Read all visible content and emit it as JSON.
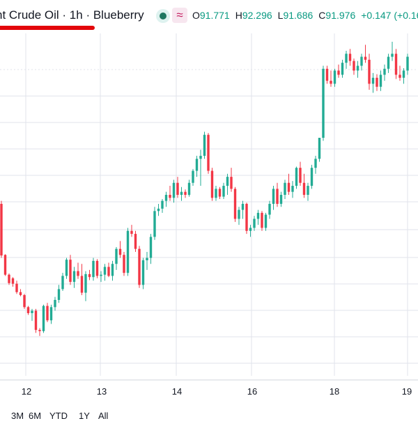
{
  "header": {
    "title": "nt Crude Oil · 1h · Blueberry",
    "indicator_glyph": "≈",
    "ohlc": {
      "o_label": "O",
      "o_value": "91.771",
      "h_label": "H",
      "h_value": "92.296",
      "l_label": "L",
      "l_value": "91.686",
      "c_label": "C",
      "c_value": "91.976",
      "change": "+0.147 (+0.16%"
    }
  },
  "colors": {
    "up": "#22ab94",
    "down": "#f23645",
    "grid": "#e0e3eb",
    "underline": "#e3070b"
  },
  "range_bar": [
    "3M",
    "6M",
    "YTD",
    "1Y",
    "All"
  ],
  "chart_data": {
    "type": "candlestick",
    "x_ticks": [
      "12",
      "13",
      "14",
      "16",
      "18",
      "19"
    ],
    "price_axis_visible": false,
    "y_range_index": [
      0,
      500
    ],
    "candles": [
      [
        390,
        395,
        300,
        304
      ],
      [
        305,
        306,
        270,
        272
      ],
      [
        272,
        274,
        255,
        258
      ],
      [
        266,
        268,
        252,
        257
      ],
      [
        257,
        262,
        240,
        243
      ],
      [
        243,
        248,
        236,
        238
      ],
      [
        238,
        240,
        215,
        218
      ],
      [
        218,
        220,
        205,
        208
      ],
      [
        208,
        215,
        195,
        212
      ],
      [
        212,
        215,
        175,
        180
      ],
      [
        180,
        183,
        170,
        178
      ],
      [
        178,
        222,
        175,
        220
      ],
      [
        220,
        225,
        193,
        196
      ],
      [
        196,
        222,
        190,
        218
      ],
      [
        218,
        235,
        212,
        230
      ],
      [
        230,
        255,
        225,
        248
      ],
      [
        248,
        275,
        245,
        270
      ],
      [
        270,
        300,
        265,
        297
      ],
      [
        297,
        305,
        255,
        260
      ],
      [
        260,
        285,
        250,
        278
      ],
      [
        278,
        292,
        265,
        270
      ],
      [
        270,
        290,
        238,
        242
      ],
      [
        242,
        278,
        228,
        273
      ],
      [
        273,
        280,
        263,
        268
      ],
      [
        268,
        300,
        262,
        295
      ],
      [
        295,
        298,
        266,
        270
      ],
      [
        270,
        278,
        260,
        272
      ],
      [
        272,
        290,
        262,
        285
      ],
      [
        285,
        292,
        268,
        270
      ],
      [
        270,
        295,
        262,
        290
      ],
      [
        290,
        318,
        280,
        315
      ],
      [
        315,
        328,
        300,
        305
      ],
      [
        305,
        310,
        270,
        275
      ],
      [
        275,
        350,
        270,
        345
      ],
      [
        345,
        355,
        335,
        340
      ],
      [
        340,
        345,
        310,
        315
      ],
      [
        315,
        320,
        250,
        255
      ],
      [
        255,
        300,
        248,
        296
      ],
      [
        296,
        310,
        280,
        300
      ],
      [
        300,
        340,
        290,
        335
      ],
      [
        335,
        385,
        330,
        378
      ],
      [
        378,
        390,
        370,
        382
      ],
      [
        382,
        398,
        375,
        395
      ],
      [
        395,
        410,
        385,
        405
      ],
      [
        405,
        420,
        395,
        400
      ],
      [
        400,
        430,
        392,
        425
      ],
      [
        425,
        435,
        400,
        405
      ],
      [
        405,
        418,
        395,
        410
      ],
      [
        410,
        414,
        400,
        405
      ],
      [
        405,
        430,
        402,
        425
      ],
      [
        425,
        448,
        420,
        445
      ],
      [
        445,
        470,
        435,
        465
      ],
      [
        465,
        480,
        420,
        470
      ],
      [
        470,
        510,
        465,
        505
      ],
      [
        505,
        508,
        440,
        445
      ],
      [
        445,
        450,
        395,
        400
      ],
      [
        400,
        420,
        395,
        415
      ],
      [
        415,
        418,
        398,
        402
      ],
      [
        402,
        425,
        398,
        420
      ],
      [
        420,
        440,
        405,
        435
      ],
      [
        435,
        450,
        410,
        415
      ],
      [
        415,
        418,
        360,
        365
      ],
      [
        365,
        385,
        355,
        380
      ],
      [
        380,
        395,
        365,
        390
      ],
      [
        390,
        392,
        340,
        345
      ],
      [
        345,
        355,
        335,
        350
      ],
      [
        350,
        370,
        345,
        365
      ],
      [
        365,
        380,
        355,
        375
      ],
      [
        375,
        378,
        345,
        350
      ],
      [
        350,
        375,
        345,
        372
      ],
      [
        372,
        395,
        365,
        390
      ],
      [
        390,
        420,
        380,
        415
      ],
      [
        415,
        425,
        385,
        390
      ],
      [
        390,
        410,
        385,
        405
      ],
      [
        405,
        430,
        398,
        425
      ],
      [
        425,
        440,
        405,
        410
      ],
      [
        410,
        428,
        400,
        420
      ],
      [
        420,
        452,
        415,
        450
      ],
      [
        450,
        460,
        420,
        425
      ],
      [
        425,
        440,
        400,
        405
      ],
      [
        405,
        425,
        395,
        420
      ],
      [
        420,
        455,
        415,
        450
      ],
      [
        450,
        470,
        440,
        465
      ],
      [
        465,
        500,
        460,
        500
      ],
      [
        500,
        620,
        495,
        615
      ],
      [
        615,
        620,
        590,
        595
      ],
      [
        595,
        612,
        585,
        590
      ],
      [
        590,
        615,
        585,
        612
      ],
      [
        612,
        622,
        600,
        605
      ],
      [
        605,
        630,
        600,
        625
      ],
      [
        625,
        645,
        615,
        640
      ],
      [
        640,
        648,
        620,
        628
      ],
      [
        628,
        632,
        605,
        612
      ],
      [
        612,
        628,
        600,
        620
      ],
      [
        620,
        640,
        612,
        635
      ],
      [
        635,
        655,
        625,
        630
      ],
      [
        630,
        640,
        580,
        590
      ],
      [
        590,
        608,
        575,
        600
      ],
      [
        600,
        606,
        578,
        585
      ],
      [
        585,
        612,
        578,
        605
      ],
      [
        605,
        622,
        595,
        615
      ],
      [
        615,
        640,
        608,
        635
      ],
      [
        635,
        660,
        628,
        640
      ],
      [
        640,
        648,
        598,
        605
      ],
      [
        605,
        620,
        595,
        600
      ],
      [
        600,
        616,
        590,
        612
      ],
      [
        612,
        640,
        605,
        635
      ]
    ],
    "note": "candle tuples are [open, high, low, close] on a relative price index; absolute price scale is not shown in the screenshot"
  }
}
